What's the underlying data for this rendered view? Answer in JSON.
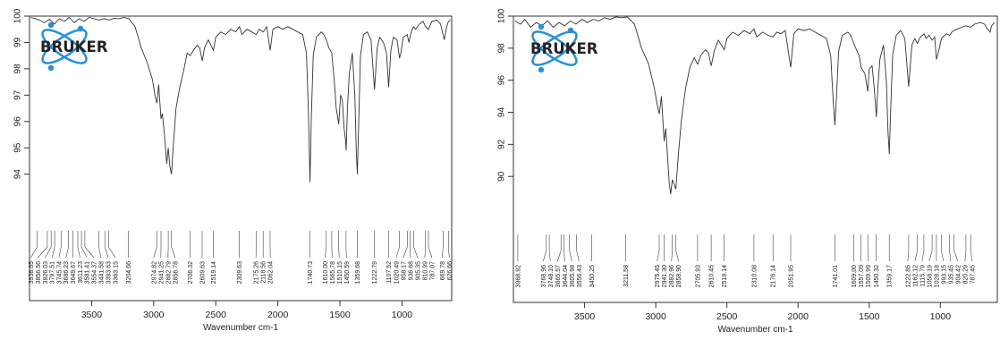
{
  "brand": {
    "logo_text": "BRUKER",
    "logo_color": "#2a8fd6",
    "logo_text_color": "#1a1a1a"
  },
  "chart_data": [
    {
      "type": "line",
      "title": "",
      "xlabel": "Wavenumber cm-1",
      "ylabel": "",
      "xlim": [
        4000,
        600
      ],
      "ylim": [
        92.8,
        100
      ],
      "x_ticks": [
        3500,
        3000,
        2500,
        2000,
        1500,
        1000
      ],
      "y_ticks": [
        94,
        95,
        96,
        97,
        98,
        99,
        100
      ],
      "line_color": "#333333",
      "grid": false,
      "spectrum": [
        [
          3990,
          99.95
        ],
        [
          3950,
          99.9
        ],
        [
          3920,
          99.85
        ],
        [
          3880,
          99.75
        ],
        [
          3840,
          99.88
        ],
        [
          3800,
          99.7
        ],
        [
          3760,
          99.9
        ],
        [
          3720,
          99.8
        ],
        [
          3680,
          99.95
        ],
        [
          3640,
          99.75
        ],
        [
          3600,
          99.9
        ],
        [
          3560,
          99.8
        ],
        [
          3520,
          99.95
        ],
        [
          3480,
          99.9
        ],
        [
          3440,
          99.85
        ],
        [
          3400,
          99.9
        ],
        [
          3360,
          99.85
        ],
        [
          3320,
          99.92
        ],
        [
          3280,
          99.9
        ],
        [
          3240,
          99.95
        ],
        [
          3200,
          99.9
        ],
        [
          3150,
          99.6
        ],
        [
          3100,
          98.8
        ],
        [
          3050,
          98.2
        ],
        [
          3010,
          97.6
        ],
        [
          2990,
          97.0
        ],
        [
          2974,
          96.7
        ],
        [
          2960,
          97.4
        ],
        [
          2941,
          96.1
        ],
        [
          2930,
          96.3
        ],
        [
          2915,
          95.6
        ],
        [
          2905,
          95.0
        ],
        [
          2895,
          94.4
        ],
        [
          2883,
          95.0
        ],
        [
          2870,
          94.3
        ],
        [
          2857,
          94.0
        ],
        [
          2840,
          95.2
        ],
        [
          2820,
          96.5
        ],
        [
          2790,
          97.3
        ],
        [
          2760,
          97.9
        ],
        [
          2730,
          98.6
        ],
        [
          2706,
          98.5
        ],
        [
          2680,
          98.7
        ],
        [
          2650,
          98.9
        ],
        [
          2630,
          98.8
        ],
        [
          2609,
          98.3
        ],
        [
          2590,
          98.8
        ],
        [
          2560,
          99.1
        ],
        [
          2519,
          98.7
        ],
        [
          2500,
          99.2
        ],
        [
          2460,
          99.4
        ],
        [
          2420,
          99.3
        ],
        [
          2380,
          99.5
        ],
        [
          2340,
          99.4
        ],
        [
          2309,
          99.6
        ],
        [
          2290,
          99.3
        ],
        [
          2250,
          99.5
        ],
        [
          2210,
          99.4
        ],
        [
          2175,
          99.3
        ],
        [
          2150,
          99.5
        ],
        [
          2118,
          99.4
        ],
        [
          2090,
          99.6
        ],
        [
          2062,
          98.7
        ],
        [
          2040,
          99.5
        ],
        [
          2000,
          99.6
        ],
        [
          1960,
          99.5
        ],
        [
          1920,
          99.6
        ],
        [
          1880,
          99.5
        ],
        [
          1840,
          99.4
        ],
        [
          1800,
          99.3
        ],
        [
          1770,
          98.6
        ],
        [
          1755,
          96.5
        ],
        [
          1741,
          93.7
        ],
        [
          1730,
          96.2
        ],
        [
          1715,
          98.5
        ],
        [
          1690,
          99.2
        ],
        [
          1650,
          99.4
        ],
        [
          1630,
          99.3
        ],
        [
          1610,
          99.1
        ],
        [
          1590,
          98.8
        ],
        [
          1566,
          98.6
        ],
        [
          1545,
          97.5
        ],
        [
          1530,
          96.5
        ],
        [
          1510,
          95.9
        ],
        [
          1495,
          97.0
        ],
        [
          1480,
          96.8
        ],
        [
          1468,
          95.8
        ],
        [
          1455,
          95.3
        ],
        [
          1450,
          94.9
        ],
        [
          1440,
          96.5
        ],
        [
          1425,
          97.8
        ],
        [
          1400,
          98.6
        ],
        [
          1380,
          97.0
        ],
        [
          1368,
          94.8
        ],
        [
          1360,
          94.0
        ],
        [
          1350,
          95.8
        ],
        [
          1335,
          98.5
        ],
        [
          1310,
          99.3
        ],
        [
          1280,
          99.4
        ],
        [
          1250,
          99.1
        ],
        [
          1222,
          97.2
        ],
        [
          1200,
          98.8
        ],
        [
          1180,
          99.2
        ],
        [
          1150,
          99.0
        ],
        [
          1125,
          98.6
        ],
        [
          1108,
          97.3
        ],
        [
          1090,
          98.7
        ],
        [
          1070,
          99.2
        ],
        [
          1040,
          99.1
        ],
        [
          1020,
          98.4
        ],
        [
          1010,
          98.6
        ],
        [
          990,
          99.2
        ],
        [
          958,
          99.3
        ],
        [
          945,
          99.0
        ],
        [
          920,
          99.5
        ],
        [
          905,
          99.6
        ],
        [
          890,
          99.5
        ],
        [
          860,
          99.7
        ],
        [
          830,
          99.8
        ],
        [
          810,
          99.6
        ],
        [
          787,
          99.5
        ],
        [
          760,
          99.8
        ],
        [
          720,
          99.85
        ],
        [
          690,
          99.7
        ],
        [
          670,
          99.3
        ],
        [
          660,
          99.1
        ],
        [
          640,
          99.6
        ],
        [
          626,
          99.8
        ],
        [
          610,
          99.85
        ]
      ],
      "peak_labels": [
        "3938.65",
        "3856.56",
        "3826.03",
        "3797.51",
        "3745.74",
        "3686.23",
        "3649.67",
        "3611.23",
        "3581.41",
        "3554.37",
        "3441.58",
        "3393.63",
        "3363.15",
        "3204.66",
        "2974.82",
        "2941.25",
        "2882.79",
        "2856.78",
        "2706.32",
        "2609.63",
        "2519.14",
        "2309.63",
        "2175.26",
        "2118.56",
        "2062.04",
        "1740.73",
        "1610.00",
        "1565.78",
        "1510.15",
        "1450.59",
        "1359.68",
        "1222.79",
        "1107.52",
        "1020.49",
        "958.17",
        "936.68",
        "905.35",
        "810.99",
        "787.07",
        "669.78",
        "626.66"
      ]
    },
    {
      "type": "line",
      "title": "",
      "xlabel": "Wavenumber cm-1",
      "ylabel": "",
      "xlim": [
        4000,
        600
      ],
      "ylim": [
        87.5,
        100
      ],
      "x_ticks": [
        3500,
        3000,
        2500,
        2000,
        1500,
        1000
      ],
      "y_ticks": [
        90,
        92,
        94,
        96,
        98,
        100
      ],
      "line_color": "#333333",
      "grid": false,
      "spectrum": [
        [
          3990,
          99.7
        ],
        [
          3950,
          99.5
        ],
        [
          3920,
          99.8
        ],
        [
          3880,
          99.3
        ],
        [
          3840,
          99.6
        ],
        [
          3800,
          99.4
        ],
        [
          3760,
          99.7
        ],
        [
          3720,
          99.3
        ],
        [
          3680,
          99.6
        ],
        [
          3640,
          99.4
        ],
        [
          3600,
          99.7
        ],
        [
          3560,
          99.5
        ],
        [
          3520,
          99.8
        ],
        [
          3480,
          99.6
        ],
        [
          3440,
          99.8
        ],
        [
          3400,
          99.7
        ],
        [
          3360,
          99.9
        ],
        [
          3320,
          99.8
        ],
        [
          3280,
          99.95
        ],
        [
          3240,
          99.9
        ],
        [
          3200,
          99.95
        ],
        [
          3150,
          99.5
        ],
        [
          3100,
          98.0
        ],
        [
          3050,
          97.0
        ],
        [
          3010,
          95.5
        ],
        [
          2990,
          94.5
        ],
        [
          2975,
          93.9
        ],
        [
          2960,
          95.0
        ],
        [
          2941,
          92.2
        ],
        [
          2930,
          93.0
        ],
        [
          2915,
          91.0
        ],
        [
          2905,
          89.6
        ],
        [
          2895,
          88.9
        ],
        [
          2883,
          89.8
        ],
        [
          2870,
          89.5
        ],
        [
          2859,
          89.2
        ],
        [
          2840,
          91.5
        ],
        [
          2820,
          93.5
        ],
        [
          2790,
          95.5
        ],
        [
          2760,
          96.8
        ],
        [
          2730,
          97.4
        ],
        [
          2706,
          97.0
        ],
        [
          2680,
          97.6
        ],
        [
          2650,
          97.9
        ],
        [
          2630,
          97.7
        ],
        [
          2610,
          96.9
        ],
        [
          2590,
          97.8
        ],
        [
          2560,
          98.5
        ],
        [
          2519,
          97.9
        ],
        [
          2500,
          98.6
        ],
        [
          2460,
          99.0
        ],
        [
          2420,
          98.8
        ],
        [
          2380,
          99.1
        ],
        [
          2340,
          98.9
        ],
        [
          2310,
          99.2
        ],
        [
          2290,
          98.7
        ],
        [
          2250,
          99.0
        ],
        [
          2210,
          98.8
        ],
        [
          2176,
          98.7
        ],
        [
          2150,
          99.0
        ],
        [
          2120,
          98.9
        ],
        [
          2090,
          99.1
        ],
        [
          2052,
          96.8
        ],
        [
          2030,
          98.9
        ],
        [
          2000,
          99.2
        ],
        [
          1960,
          99.1
        ],
        [
          1920,
          99.2
        ],
        [
          1880,
          99.0
        ],
        [
          1840,
          98.8
        ],
        [
          1800,
          98.6
        ],
        [
          1770,
          97.5
        ],
        [
          1755,
          95.0
        ],
        [
          1741,
          93.2
        ],
        [
          1730,
          95.0
        ],
        [
          1715,
          97.8
        ],
        [
          1690,
          98.8
        ],
        [
          1650,
          99.0
        ],
        [
          1630,
          98.8
        ],
        [
          1609,
          98.3
        ],
        [
          1590,
          97.9
        ],
        [
          1570,
          97.5
        ],
        [
          1557,
          96.8
        ],
        [
          1530,
          96.4
        ],
        [
          1510,
          95.3
        ],
        [
          1500,
          96.7
        ],
        [
          1480,
          96.9
        ],
        [
          1468,
          95.8
        ],
        [
          1455,
          94.3
        ],
        [
          1450,
          93.7
        ],
        [
          1440,
          95.4
        ],
        [
          1425,
          97.3
        ],
        [
          1400,
          98.2
        ],
        [
          1380,
          96.0
        ],
        [
          1368,
          92.8
        ],
        [
          1359,
          91.4
        ],
        [
          1350,
          94.0
        ],
        [
          1335,
          97.6
        ],
        [
          1310,
          98.8
        ],
        [
          1280,
          99.1
        ],
        [
          1250,
          98.6
        ],
        [
          1223,
          95.6
        ],
        [
          1200,
          98.2
        ],
        [
          1180,
          98.6
        ],
        [
          1162,
          98.3
        ],
        [
          1140,
          98.7
        ],
        [
          1115,
          98.9
        ],
        [
          1100,
          98.6
        ],
        [
          1080,
          98.8
        ],
        [
          1058,
          98.5
        ],
        [
          1040,
          98.7
        ],
        [
          1028,
          97.3
        ],
        [
          1010,
          97.9
        ],
        [
          993,
          98.6
        ],
        [
          958,
          98.9
        ],
        [
          935,
          98.8
        ],
        [
          920,
          99.0
        ],
        [
          905,
          99.1
        ],
        [
          880,
          99.2
        ],
        [
          850,
          99.3
        ],
        [
          820,
          99.4
        ],
        [
          787,
          99.3
        ],
        [
          760,
          99.5
        ],
        [
          720,
          99.6
        ],
        [
          690,
          99.5
        ],
        [
          670,
          99.2
        ],
        [
          650,
          99.0
        ],
        [
          640,
          99.4
        ],
        [
          620,
          99.6
        ]
      ],
      "peak_labels": [
        "3968.92",
        "3768.96",
        "3748.10",
        "3665.57",
        "3644.04",
        "3605.98",
        "3556.43",
        "3450.25",
        "3211.58",
        "2975.45",
        "2941.30",
        "2882.96",
        "2858.90",
        "2705.93",
        "2610.45",
        "2519.14",
        "2310.08",
        "2176.14",
        "2051.95",
        "1741.01",
        "1609.00",
        "1557.09",
        "1509.99",
        "1450.32",
        "1359.17",
        "1222.85",
        "1162.12",
        "1115.79",
        "1058.19",
        "1028.18",
        "993.15",
        "935.45",
        "904.42",
        "820.29",
        "787.45"
      ]
    }
  ]
}
